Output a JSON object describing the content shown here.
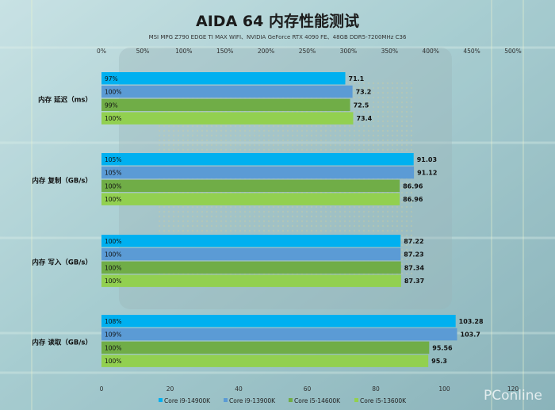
{
  "title": "AIDA 64 内存性能测试",
  "subtitle": "MSI MPG Z790 EDGE TI MAX WIFI、NVIDIA GeForce RTX 4090 FE、48GB DDR5-7200MHz C36",
  "watermark": "PConline",
  "colors": {
    "series": [
      "#00b0f0",
      "#5b9bd5",
      "#70ad47",
      "#92d050"
    ]
  },
  "chart_data": {
    "type": "bar",
    "orientation": "horizontal",
    "title": "AIDA 64 内存性能测试",
    "subtitle": "MSI MPG Z790 EDGE TI MAX WIFI、NVIDIA GeForce RTX 4090 FE、48GB DDR5-7200MHz C36",
    "categories": [
      "内存 延迟（ms）",
      "内存 复制（GB/s）",
      "内存 写入（GB/s）",
      "内存 读取（GB/s）"
    ],
    "series": [
      {
        "name": "Core i9-14900K",
        "values": [
          71.1,
          91.03,
          87.22,
          103.28
        ],
        "percent_labels": [
          "97%",
          "105%",
          "100%",
          "108%"
        ]
      },
      {
        "name": "Core i9-13900K",
        "values": [
          73.2,
          91.12,
          87.23,
          103.7
        ],
        "percent_labels": [
          "100%",
          "105%",
          "100%",
          "109%"
        ]
      },
      {
        "name": "Core i5-14600K",
        "values": [
          72.5,
          86.96,
          87.34,
          95.56
        ],
        "percent_labels": [
          "99%",
          "100%",
          "100%",
          "100%"
        ]
      },
      {
        "name": "Core i5-13600K",
        "values": [
          73.4,
          86.96,
          87.37,
          95.3
        ],
        "percent_labels": [
          "100%",
          "100%",
          "100%",
          "100%"
        ]
      }
    ],
    "x_bottom_ticks": [
      "0",
      "20",
      "40",
      "60",
      "80",
      "100",
      "120"
    ],
    "x_top_ticks": [
      "0%",
      "50%",
      "100%",
      "150%",
      "200%",
      "250%",
      "300%",
      "350%",
      "400%",
      "450%",
      "500%"
    ],
    "xlim": [
      0,
      120
    ],
    "grid": false,
    "legend_position": "bottom"
  }
}
